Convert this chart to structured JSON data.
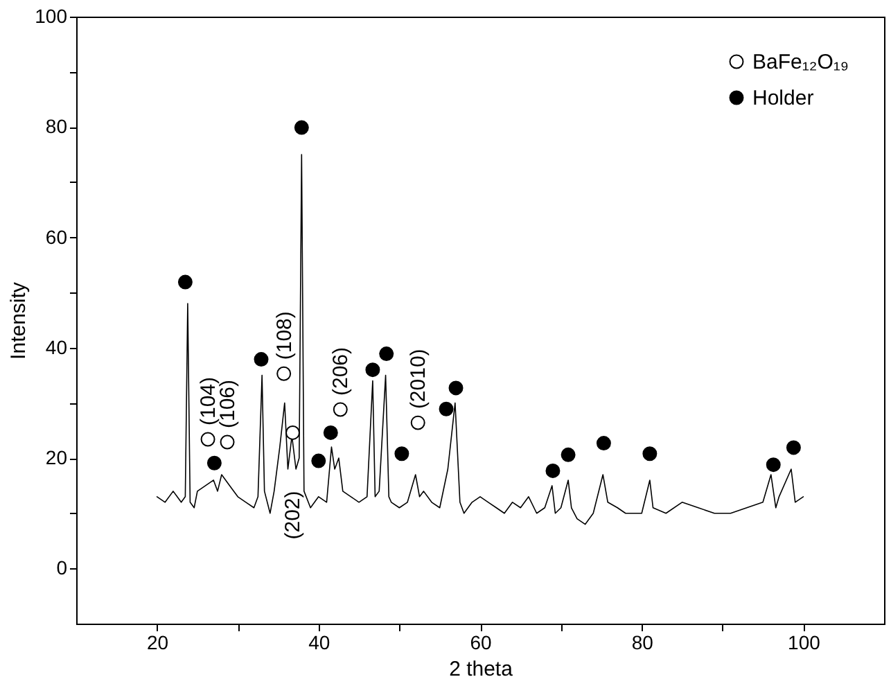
{
  "chart_data": {
    "type": "line",
    "xlabel": "2 theta",
    "ylabel": "Intensity",
    "xlim": [
      10,
      110
    ],
    "ylim": [
      -10,
      100
    ],
    "xticks": [
      20,
      {
        "value": 30,
        "label": null
      },
      40,
      {
        "value": 50,
        "label": null
      },
      60,
      {
        "value": 70,
        "label": null
      },
      80,
      {
        "value": 90,
        "label": null
      },
      100
    ],
    "yticks": [
      0,
      {
        "value": 10,
        "label": null
      },
      20,
      {
        "value": 30,
        "label": null
      },
      40,
      {
        "value": 50,
        "label": null
      },
      60,
      {
        "value": 70,
        "label": null
      },
      80,
      {
        "value": 90,
        "label": null
      },
      100
    ],
    "grid": false,
    "legend": "top right",
    "series": [
      {
        "color": "#000000",
        "line_style": "solid",
        "marker": "none",
        "x": [
          20,
          21,
          22,
          23,
          23.5,
          23.8,
          24.1,
          24.6,
          25,
          26,
          27,
          27.5,
          28,
          29,
          30,
          31,
          32,
          32.5,
          33,
          33.3,
          34,
          34.5,
          35.2,
          35.8,
          36.2,
          36.7,
          37.2,
          37.6,
          37.9,
          38.2,
          39,
          40,
          41,
          41.6,
          42,
          42.5,
          43,
          44,
          45,
          46,
          46.7,
          47,
          47.5,
          48.3,
          48.7,
          49,
          50,
          51,
          52,
          52.5,
          53,
          54,
          55,
          56,
          56.9,
          57.5,
          58,
          59,
          60,
          61,
          62,
          63,
          64,
          65,
          66,
          67,
          68,
          68.9,
          69.3,
          70,
          70.9,
          71.3,
          72,
          73,
          74,
          75.2,
          75.8,
          77,
          78,
          80,
          81,
          81.4,
          83,
          85,
          87,
          89,
          91,
          93,
          95,
          96,
          96.6,
          97,
          98.5,
          99,
          100
        ],
        "values": [
          13,
          12,
          14,
          12,
          13,
          48,
          12,
          11,
          14,
          15,
          16,
          14,
          17,
          15,
          13,
          12,
          11,
          13,
          35,
          14,
          10,
          14,
          22,
          30,
          18,
          24,
          18,
          20,
          75,
          14,
          11,
          13,
          12,
          22,
          18,
          20,
          14,
          13,
          12,
          13,
          34,
          13,
          14,
          35,
          13,
          12,
          11,
          12,
          17,
          13,
          14,
          12,
          11,
          18,
          30,
          12,
          10,
          12,
          13,
          12,
          11,
          10,
          12,
          11,
          13,
          10,
          11,
          15,
          10,
          11,
          16,
          11,
          9,
          8,
          10,
          17,
          12,
          11,
          10,
          10,
          16,
          11,
          10,
          12,
          11,
          10,
          10,
          11,
          12,
          17,
          11,
          13,
          18,
          12,
          13
        ]
      },
      {
        "type": "scatter",
        "name": "BaFe₁₂O₁₉",
        "color": "#ffffff",
        "marker": "circle",
        "x": [
          26.3,
          28.7,
          35.7,
          36.8,
          42.7,
          52.3
        ],
        "values": [
          23.4,
          22.9,
          35.3,
          24.6,
          28.8,
          26.4
        ]
      },
      {
        "type": "scatter",
        "name": "Holder",
        "color": "#000000",
        "marker": "circle",
        "x": [
          23.5,
          27.1,
          32.9,
          37.9,
          40.0,
          41.5,
          46.7,
          48.4,
          50.3,
          55.8,
          57.0,
          69.0,
          70.9,
          75.3,
          81.0,
          96.3,
          98.8
        ],
        "values": [
          51.9,
          19.1,
          37.9,
          79.9,
          19.5,
          24.6,
          36.0,
          38.9,
          20.8,
          28.9,
          32.7,
          17.7,
          20.6,
          22.7,
          20.8,
          18.8,
          21.9
        ]
      }
    ],
    "annotations": [
      {
        "text": "(104)",
        "x": 26.3,
        "y": 23.4
      },
      {
        "text": "(106)",
        "x": 28.7,
        "y": 22.9
      },
      {
        "text": "(108)",
        "x": 35.7,
        "y": 35.3
      },
      {
        "text": "(206)",
        "x": 42.7,
        "y": 28.8
      },
      {
        "text": "(2010)",
        "x": 52.3,
        "y": 26.4
      },
      {
        "text": "(202)",
        "x": 36.8,
        "y": 24.6
      }
    ]
  }
}
